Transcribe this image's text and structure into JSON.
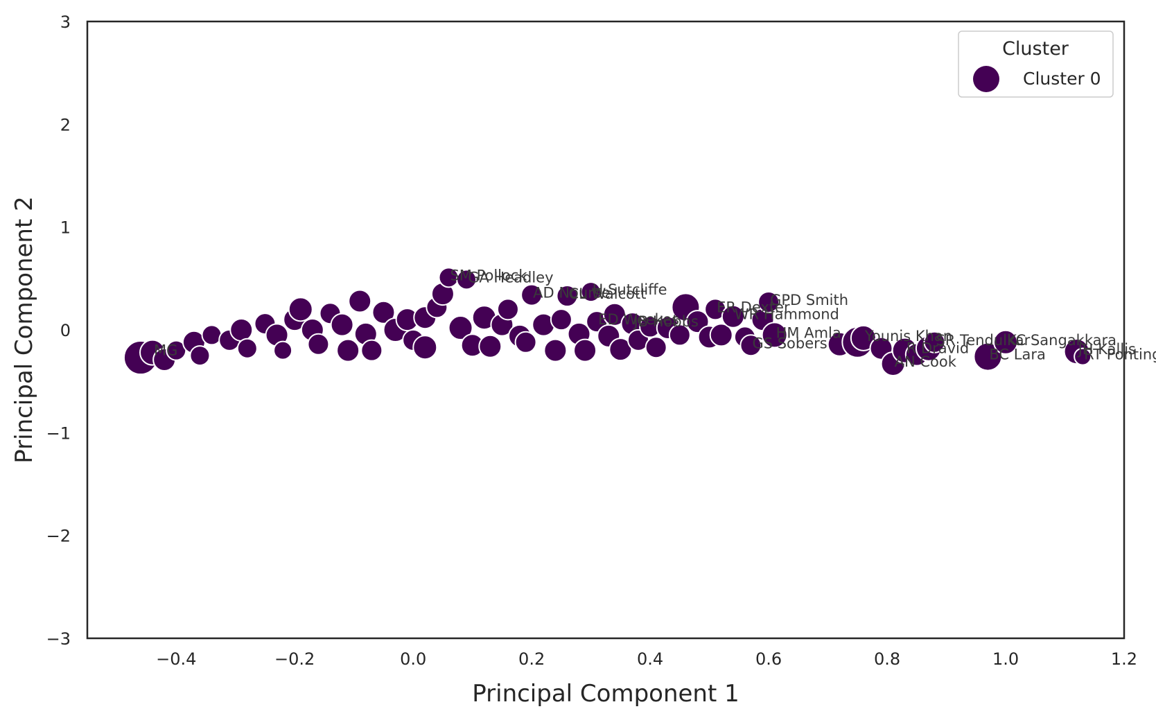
{
  "chart_data": {
    "type": "scatter",
    "title": "",
    "xlabel": "Principal Component 1",
    "ylabel": "Principal Component 2",
    "xlim": [
      -0.55,
      1.2
    ],
    "ylim": [
      -3,
      3
    ],
    "xticks": [
      -0.4,
      -0.2,
      0.0,
      0.2,
      0.4,
      0.6,
      0.8,
      1.0,
      1.2
    ],
    "xtick_labels": [
      "−0.4",
      "−0.2",
      "0.0",
      "0.2",
      "0.4",
      "0.6",
      "0.8",
      "1.0",
      "1.2"
    ],
    "yticks": [
      -3,
      -2,
      -1,
      0,
      1,
      2,
      3
    ],
    "ytick_labels": [
      "−3",
      "−2",
      "−1",
      "0",
      "1",
      "2",
      "3"
    ],
    "grid": false,
    "legend": {
      "title": "Cluster",
      "position": "top-right",
      "entries": [
        {
          "label": "Cluster 0",
          "color": "#440154"
        }
      ]
    },
    "series": [
      {
        "name": "Cluster 0",
        "color": "#440154",
        "points": [
          {
            "x": -0.46,
            "y": -0.27,
            "s": 24,
            "label": ""
          },
          {
            "x": -0.44,
            "y": -0.22,
            "s": 18,
            "label": "MG"
          },
          {
            "x": -0.42,
            "y": -0.29,
            "s": 16,
            "label": ""
          },
          {
            "x": -0.4,
            "y": -0.2,
            "s": 14,
            "label": ""
          },
          {
            "x": -0.37,
            "y": -0.12,
            "s": 16,
            "label": ""
          },
          {
            "x": -0.36,
            "y": -0.25,
            "s": 14,
            "label": ""
          },
          {
            "x": -0.34,
            "y": -0.05,
            "s": 14,
            "label": ""
          },
          {
            "x": -0.31,
            "y": -0.1,
            "s": 15,
            "label": ""
          },
          {
            "x": -0.29,
            "y": 0.0,
            "s": 16,
            "label": ""
          },
          {
            "x": -0.28,
            "y": -0.18,
            "s": 14,
            "label": ""
          },
          {
            "x": -0.25,
            "y": 0.06,
            "s": 15,
            "label": ""
          },
          {
            "x": -0.23,
            "y": -0.05,
            "s": 16,
            "label": ""
          },
          {
            "x": -0.22,
            "y": -0.2,
            "s": 13,
            "label": ""
          },
          {
            "x": -0.2,
            "y": 0.1,
            "s": 16,
            "label": ""
          },
          {
            "x": -0.19,
            "y": 0.2,
            "s": 17,
            "label": ""
          },
          {
            "x": -0.17,
            "y": 0.0,
            "s": 16,
            "label": ""
          },
          {
            "x": -0.16,
            "y": -0.14,
            "s": 15,
            "label": ""
          },
          {
            "x": -0.14,
            "y": 0.16,
            "s": 15,
            "label": ""
          },
          {
            "x": -0.12,
            "y": 0.05,
            "s": 16,
            "label": ""
          },
          {
            "x": -0.11,
            "y": -0.2,
            "s": 16,
            "label": ""
          },
          {
            "x": -0.09,
            "y": 0.28,
            "s": 16,
            "label": ""
          },
          {
            "x": -0.08,
            "y": -0.04,
            "s": 16,
            "label": ""
          },
          {
            "x": -0.07,
            "y": -0.2,
            "s": 15,
            "label": ""
          },
          {
            "x": -0.05,
            "y": 0.17,
            "s": 16,
            "label": ""
          },
          {
            "x": -0.03,
            "y": 0.0,
            "s": 17,
            "label": ""
          },
          {
            "x": -0.01,
            "y": 0.1,
            "s": 16,
            "label": ""
          },
          {
            "x": 0.0,
            "y": -0.1,
            "s": 15,
            "label": ""
          },
          {
            "x": 0.02,
            "y": 0.12,
            "s": 16,
            "label": ""
          },
          {
            "x": 0.02,
            "y": -0.17,
            "s": 17,
            "label": ""
          },
          {
            "x": 0.04,
            "y": 0.22,
            "s": 15,
            "label": ""
          },
          {
            "x": 0.05,
            "y": 0.35,
            "s": 16,
            "label": ""
          },
          {
            "x": 0.06,
            "y": 0.51,
            "s": 14,
            "label": "SM Pollock"
          },
          {
            "x": 0.09,
            "y": 0.49,
            "s": 14,
            "label": "GA Headley"
          },
          {
            "x": 0.08,
            "y": 0.02,
            "s": 17,
            "label": ""
          },
          {
            "x": 0.1,
            "y": -0.15,
            "s": 16,
            "label": ""
          },
          {
            "x": 0.12,
            "y": 0.12,
            "s": 17,
            "label": ""
          },
          {
            "x": 0.13,
            "y": -0.16,
            "s": 16,
            "label": ""
          },
          {
            "x": 0.15,
            "y": 0.05,
            "s": 16,
            "label": ""
          },
          {
            "x": 0.16,
            "y": 0.2,
            "s": 15,
            "label": ""
          },
          {
            "x": 0.18,
            "y": -0.06,
            "s": 16,
            "label": ""
          },
          {
            "x": 0.19,
            "y": -0.12,
            "s": 15,
            "label": ""
          },
          {
            "x": 0.2,
            "y": 0.34,
            "s": 15,
            "label": "AD Nourse"
          },
          {
            "x": 0.22,
            "y": 0.05,
            "s": 16,
            "label": ""
          },
          {
            "x": 0.24,
            "y": -0.2,
            "s": 16,
            "label": ""
          },
          {
            "x": 0.25,
            "y": 0.1,
            "s": 15,
            "label": ""
          },
          {
            "x": 0.26,
            "y": 0.33,
            "s": 15,
            "label": "CL Walcott"
          },
          {
            "x": 0.28,
            "y": -0.04,
            "s": 16,
            "label": ""
          },
          {
            "x": 0.29,
            "y": -0.2,
            "s": 16,
            "label": ""
          },
          {
            "x": 0.3,
            "y": 0.37,
            "s": 14,
            "label": "H Sutcliffe"
          },
          {
            "x": 0.31,
            "y": 0.08,
            "s": 15,
            "label": "ED Weekes"
          },
          {
            "x": 0.33,
            "y": -0.06,
            "s": 16,
            "label": ""
          },
          {
            "x": 0.34,
            "y": 0.15,
            "s": 16,
            "label": ""
          },
          {
            "x": 0.35,
            "y": -0.19,
            "s": 16,
            "label": ""
          },
          {
            "x": 0.37,
            "y": 0.06,
            "s": 16,
            "label": "JB Hobbs"
          },
          {
            "x": 0.38,
            "y": -0.1,
            "s": 15,
            "label": ""
          },
          {
            "x": 0.4,
            "y": 0.03,
            "s": 15,
            "label": ""
          },
          {
            "x": 0.41,
            "y": -0.17,
            "s": 15,
            "label": ""
          },
          {
            "x": 0.43,
            "y": 0.02,
            "s": 16,
            "label": ""
          },
          {
            "x": 0.45,
            "y": -0.05,
            "s": 15,
            "label": ""
          },
          {
            "x": 0.46,
            "y": 0.22,
            "s": 20,
            "label": ""
          },
          {
            "x": 0.48,
            "y": 0.08,
            "s": 16,
            "label": ""
          },
          {
            "x": 0.5,
            "y": -0.07,
            "s": 16,
            "label": ""
          },
          {
            "x": 0.51,
            "y": 0.2,
            "s": 15,
            "label": "ER Dexter"
          },
          {
            "x": 0.52,
            "y": -0.05,
            "s": 16,
            "label": ""
          },
          {
            "x": 0.54,
            "y": 0.13,
            "s": 16,
            "label": "WR Hammond"
          },
          {
            "x": 0.56,
            "y": -0.07,
            "s": 15,
            "label": ""
          },
          {
            "x": 0.57,
            "y": -0.15,
            "s": 15,
            "label": "GS Sobers"
          },
          {
            "x": 0.59,
            "y": 0.1,
            "s": 16,
            "label": ""
          },
          {
            "x": 0.6,
            "y": 0.27,
            "s": 15,
            "label": "GPD Smith"
          },
          {
            "x": 0.61,
            "y": -0.05,
            "s": 18,
            "label": "HM Amla"
          },
          {
            "x": 0.72,
            "y": -0.14,
            "s": 17,
            "label": ""
          },
          {
            "x": 0.75,
            "y": -0.12,
            "s": 22,
            "label": ""
          },
          {
            "x": 0.76,
            "y": -0.08,
            "s": 18,
            "label": "Younis Khan"
          },
          {
            "x": 0.79,
            "y": -0.18,
            "s": 16,
            "label": ""
          },
          {
            "x": 0.81,
            "y": -0.33,
            "s": 17,
            "label": "AN Cook"
          },
          {
            "x": 0.83,
            "y": -0.2,
            "s": 18,
            "label": "R Dravid"
          },
          {
            "x": 0.85,
            "y": -0.24,
            "s": 16,
            "label": ""
          },
          {
            "x": 0.87,
            "y": -0.18,
            "s": 18,
            "label": ""
          },
          {
            "x": 0.88,
            "y": -0.12,
            "s": 15,
            "label": "SR Tendulkar"
          },
          {
            "x": 0.97,
            "y": -0.26,
            "s": 20,
            "label": "BC Lara"
          },
          {
            "x": 1.0,
            "y": -0.12,
            "s": 17,
            "label": "KC Sangakkara"
          },
          {
            "x": 1.12,
            "y": -0.21,
            "s": 18,
            "label": "JH Kallis"
          },
          {
            "x": 1.13,
            "y": -0.26,
            "s": 12,
            "label": "RT Ponting"
          }
        ]
      }
    ]
  }
}
